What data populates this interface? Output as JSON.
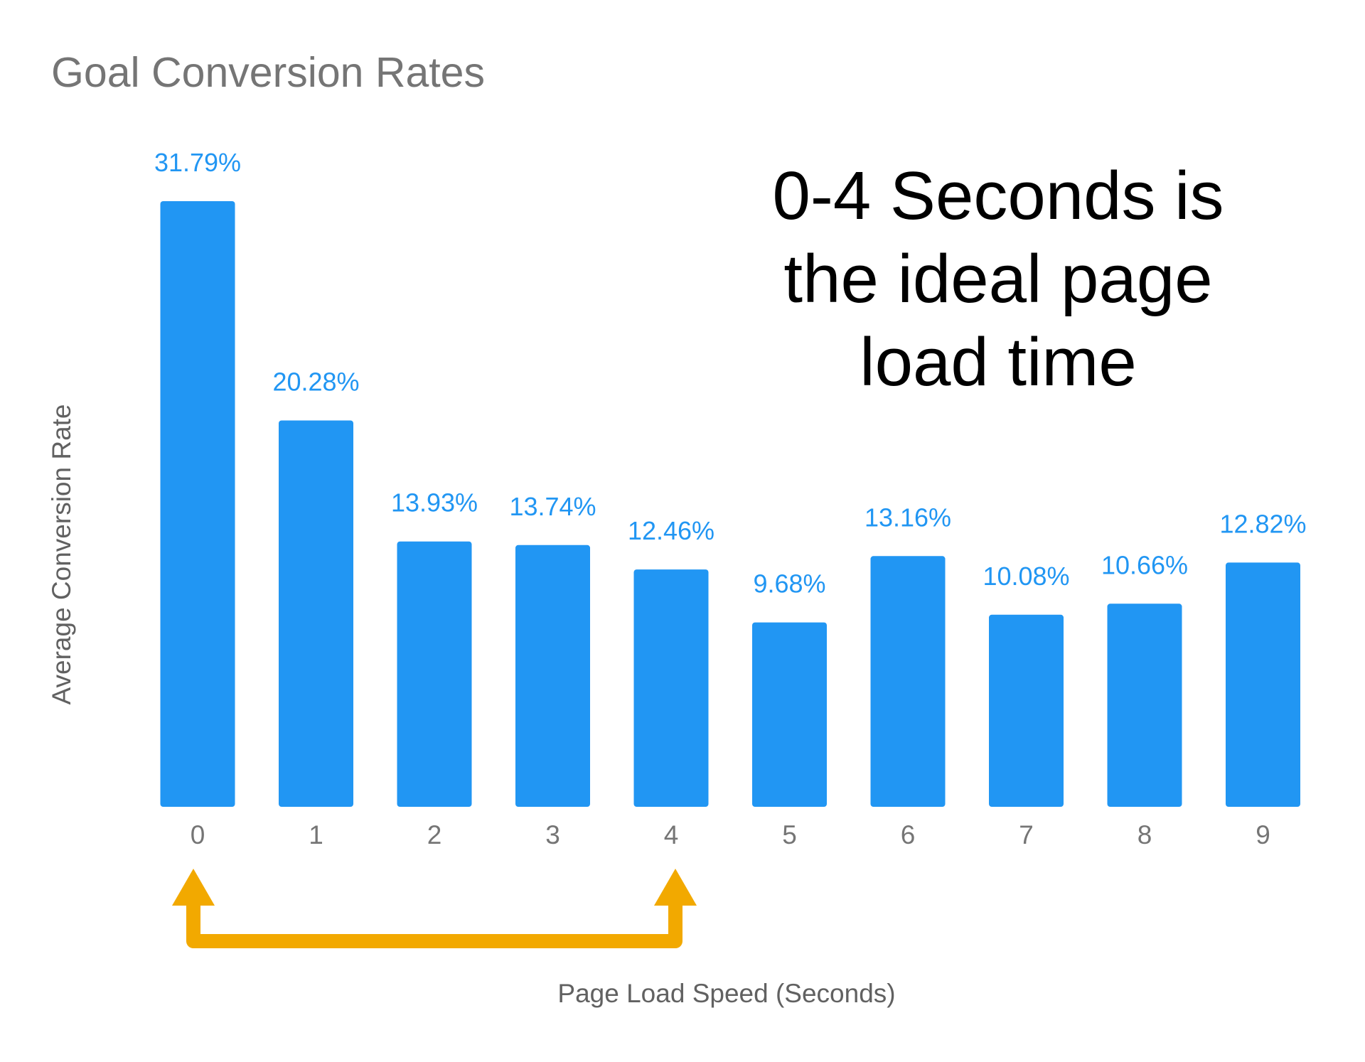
{
  "chart_data": {
    "type": "bar",
    "title": "Goal Conversion Rates",
    "xlabel": "Page Load Speed (Seconds)",
    "ylabel": "Average Conversion Rate",
    "categories": [
      "0",
      "1",
      "2",
      "3",
      "4",
      "5",
      "6",
      "7",
      "8",
      "9"
    ],
    "values": [
      31.79,
      20.28,
      13.93,
      13.74,
      12.46,
      9.68,
      13.16,
      10.08,
      10.66,
      12.82
    ],
    "data_labels": [
      "31.79%",
      "20.28%",
      "13.93%",
      "13.74%",
      "12.46%",
      "9.68%",
      "13.16%",
      "10.08%",
      "10.66%",
      "12.82%"
    ],
    "ylim": [
      0,
      31.79
    ],
    "grid": false,
    "legend": "none",
    "bar_color": "#2196f3",
    "annotation": {
      "lines": [
        "0-4 Seconds is",
        "the ideal page",
        "load time"
      ]
    },
    "range_arrow": {
      "from": "0",
      "to": "4",
      "color": "#f2a900"
    }
  }
}
